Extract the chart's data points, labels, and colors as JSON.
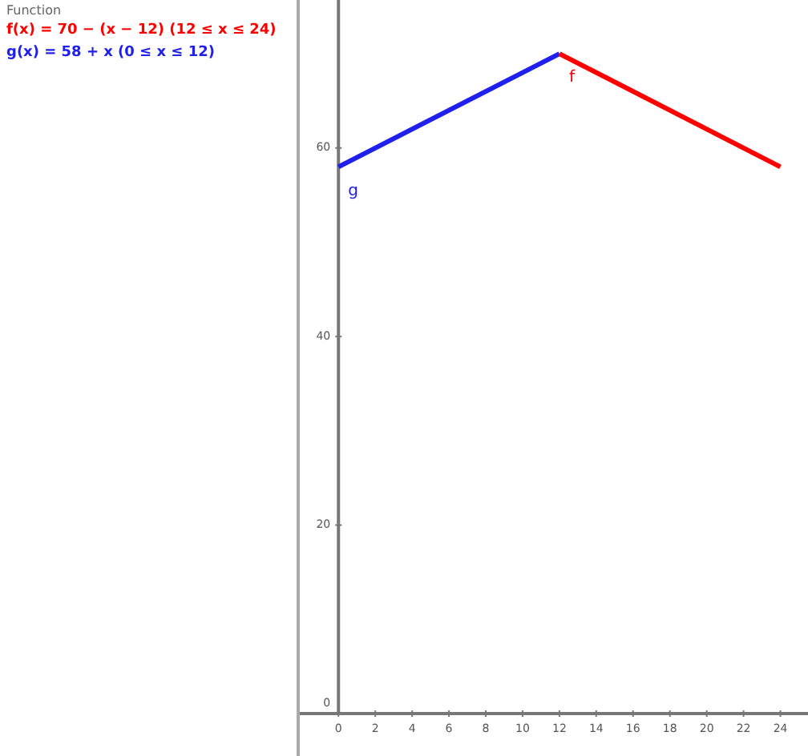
{
  "chart_data": {
    "type": "line",
    "annotations": [
      "Function",
      "f(x) = 70 − (x − 12)    (12 ≤ x ≤ 24)",
      "g(x) = 58 + x    (0 ≤ x ≤ 12)"
    ],
    "series": [
      {
        "name": "f",
        "color": "#ff0000",
        "x": [
          12,
          24
        ],
        "values": [
          70,
          58
        ]
      },
      {
        "name": "g",
        "color": "#2020ee",
        "x": [
          0,
          12
        ],
        "values": [
          58,
          70
        ]
      }
    ],
    "xlim": [
      -2.1,
      25.5
    ],
    "ylim": [
      -4.5,
      75.7
    ],
    "xticks": [
      0,
      2,
      4,
      6,
      8,
      10,
      12,
      14,
      16,
      18,
      20,
      22,
      24
    ],
    "yticks": [
      0,
      20,
      40,
      60
    ],
    "legend": false,
    "marker": "none",
    "line_style": "solid"
  }
}
